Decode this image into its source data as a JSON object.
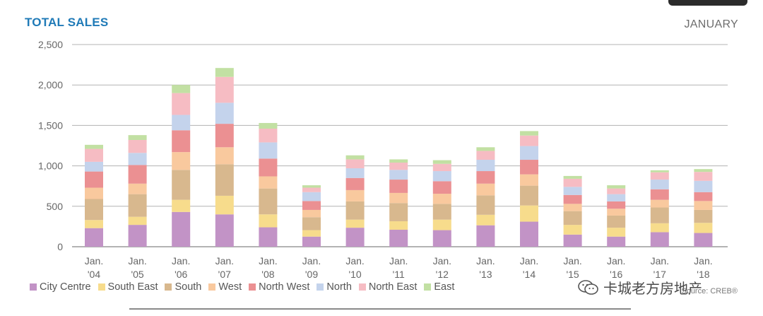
{
  "header": {
    "title": "TOTAL SALES",
    "month": "JANUARY"
  },
  "watermark": {
    "text": "卡城老方房地产"
  },
  "source": {
    "text": "Source: CREB®"
  },
  "chart_data": {
    "type": "bar",
    "stacked": true,
    "title": "TOTAL SALES",
    "ylim": [
      0,
      2500
    ],
    "yticks": [
      0,
      500,
      1000,
      1500,
      2000,
      2500
    ],
    "ytick_labels": [
      "0",
      "500",
      "1,000",
      "1,500",
      "2,000",
      "2,500"
    ],
    "grid": true,
    "legend_position": "bottom",
    "categories": [
      "Jan. '04",
      "Jan. '05",
      "Jan. '06",
      "Jan. '07",
      "Jan. '08",
      "Jan. '09",
      "Jan. '10",
      "Jan. '11",
      "Jan. '12",
      "Jan. '13",
      "Jan. '14",
      "Jan. '15",
      "Jan. '16",
      "Jan. '17",
      "Jan. '18"
    ],
    "category_lines": [
      [
        "Jan.",
        "'04"
      ],
      [
        "Jan.",
        "'05"
      ],
      [
        "Jan.",
        "'06"
      ],
      [
        "Jan.",
        "'07"
      ],
      [
        "Jan.",
        "'08"
      ],
      [
        "Jan.",
        "'09"
      ],
      [
        "Jan.",
        "'10"
      ],
      [
        "Jan.",
        "'11"
      ],
      [
        "Jan.",
        "'12"
      ],
      [
        "Jan.",
        "'13"
      ],
      [
        "Jan.",
        "'14"
      ],
      [
        "Jan.",
        "'15"
      ],
      [
        "Jan.",
        "'16"
      ],
      [
        "Jan.",
        "'17"
      ],
      [
        "Jan.",
        "'18"
      ]
    ],
    "series": [
      {
        "name": "City Centre",
        "color": "#c293c6",
        "values": [
          230,
          270,
          430,
          400,
          240,
          125,
          235,
          210,
          205,
          265,
          310,
          150,
          125,
          180,
          170
        ]
      },
      {
        "name": "South East",
        "color": "#f7dc8c",
        "values": [
          100,
          100,
          150,
          230,
          160,
          80,
          100,
          105,
          130,
          130,
          200,
          120,
          110,
          110,
          125
        ]
      },
      {
        "name": "South",
        "color": "#d8b88e",
        "values": [
          260,
          280,
          370,
          390,
          320,
          160,
          225,
          225,
          195,
          240,
          245,
          170,
          150,
          195,
          160
        ]
      },
      {
        "name": "West",
        "color": "#f9c99e",
        "values": [
          140,
          130,
          220,
          210,
          150,
          90,
          140,
          125,
          125,
          145,
          140,
          90,
          85,
          95,
          110
        ]
      },
      {
        "name": "North West",
        "color": "#eb9092",
        "values": [
          200,
          230,
          270,
          290,
          220,
          110,
          150,
          165,
          155,
          155,
          180,
          110,
          90,
          130,
          110
        ]
      },
      {
        "name": "North",
        "color": "#c4d3ec",
        "values": [
          120,
          150,
          190,
          260,
          200,
          110,
          120,
          120,
          125,
          140,
          170,
          100,
          90,
          120,
          140
        ]
      },
      {
        "name": "North East",
        "color": "#f6bcc3",
        "values": [
          160,
          160,
          270,
          320,
          170,
          55,
          110,
          90,
          90,
          110,
          130,
          100,
          70,
          90,
          110
        ]
      },
      {
        "name": "East",
        "color": "#c2e0a3",
        "values": [
          50,
          60,
          100,
          110,
          70,
          30,
          50,
          40,
          45,
          45,
          55,
          35,
          40,
          25,
          35
        ]
      }
    ]
  }
}
